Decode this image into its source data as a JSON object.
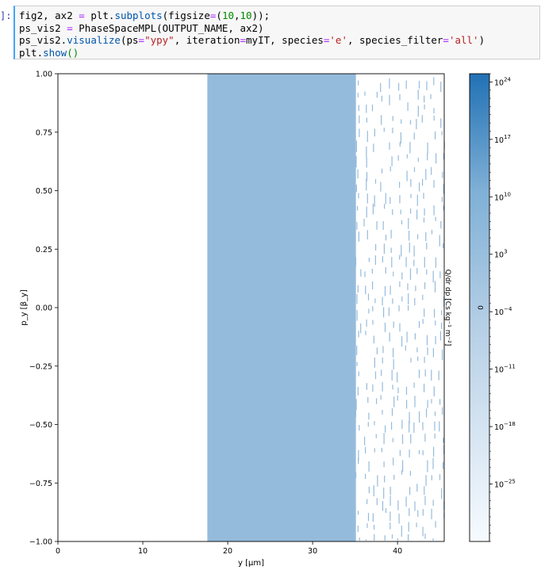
{
  "notebook": {
    "prompt": "]:",
    "code_lines": [
      [
        {
          "t": "fig2, ax2 ",
          "c": ""
        },
        {
          "t": "=",
          "c": "kw-eq"
        },
        {
          "t": " plt.",
          "c": ""
        },
        {
          "t": "subplots",
          "c": "fn"
        },
        {
          "t": "(figsize",
          "c": ""
        },
        {
          "t": "=",
          "c": "kw-eq"
        },
        {
          "t": "(",
          "c": ""
        },
        {
          "t": "10",
          "c": "num"
        },
        {
          "t": ",",
          "c": ""
        },
        {
          "t": "10",
          "c": "num"
        },
        {
          "t": "));",
          "c": ""
        }
      ],
      [
        {
          "t": "ps_vis2 ",
          "c": ""
        },
        {
          "t": "=",
          "c": "kw-eq"
        },
        {
          "t": " PhaseSpaceMPL(OUTPUT_NAME, ax2)",
          "c": ""
        }
      ],
      [
        {
          "t": "ps_vis2.",
          "c": ""
        },
        {
          "t": "visualize",
          "c": "fn"
        },
        {
          "t": "(ps",
          "c": ""
        },
        {
          "t": "=",
          "c": "kw-eq"
        },
        {
          "t": "\"ypy\"",
          "c": "str"
        },
        {
          "t": ", iteration",
          "c": ""
        },
        {
          "t": "=",
          "c": "kw-eq"
        },
        {
          "t": "myIT, species",
          "c": ""
        },
        {
          "t": "=",
          "c": "kw-eq"
        },
        {
          "t": "'e'",
          "c": "str"
        },
        {
          "t": ", species_filter",
          "c": ""
        },
        {
          "t": "=",
          "c": "kw-eq"
        },
        {
          "t": "'all'",
          "c": "str"
        },
        {
          "t": ")",
          "c": ""
        }
      ],
      [
        {
          "t": "plt.",
          "c": ""
        },
        {
          "t": "show",
          "c": "attr"
        },
        {
          "t": "()",
          "c": "num"
        }
      ]
    ]
  },
  "chart_data": {
    "type": "heatmap",
    "xlabel": "y [μm]",
    "ylabel": "p_y [β_y]",
    "xlim": [
      0,
      45.5
    ],
    "ylim": [
      -1.0,
      1.0
    ],
    "x_ticks": [
      "0",
      "10",
      "20",
      "30",
      "40"
    ],
    "x_tick_values": [
      0,
      10,
      20,
      30,
      40
    ],
    "y_ticks": [
      "1.00",
      "0.75",
      "0.50",
      "0.25",
      "0.00",
      "−0.25",
      "−0.50",
      "−0.75",
      "−1.00"
    ],
    "y_tick_values": [
      1.0,
      0.75,
      0.5,
      0.25,
      0.0,
      -0.25,
      -0.5,
      -0.75,
      -1.0
    ],
    "filled_region": {
      "x_start": 17.6,
      "x_end": 35.1,
      "y_start": -1.0,
      "y_end": 1.0,
      "color": "#95bbdc"
    },
    "scattered_region": {
      "x_start": 35.1,
      "x_end": 45.5
    },
    "colorbar": {
      "label": "Q/dr dp [Cs kg⁻¹ m⁻²]",
      "side_label": "0",
      "scale": "log",
      "tick_exponents": [
        "24",
        "17",
        "10",
        "3",
        "−4",
        "−11",
        "−18",
        "−25"
      ],
      "tick_values_log10": [
        24,
        17,
        10,
        3,
        -4,
        -11,
        -18,
        -25
      ],
      "range_log10": [
        -32,
        25
      ],
      "color_low": "#f7fbff",
      "color_mid": "#95bbdc",
      "color_high": "#2171b5"
    }
  }
}
